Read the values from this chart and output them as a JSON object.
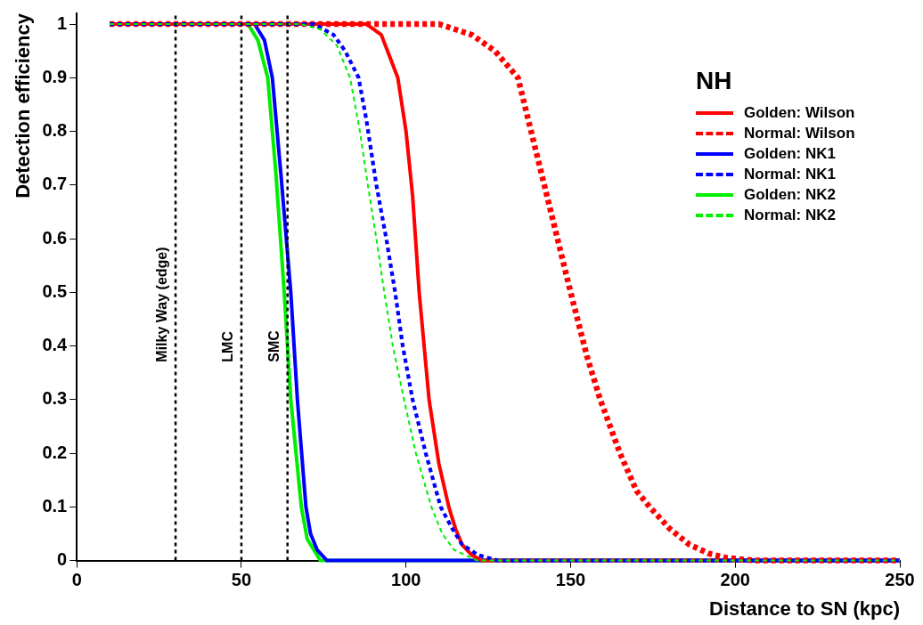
{
  "chart_data": {
    "type": "line",
    "xlabel": "Distance to SN (kpc)",
    "ylabel": "Detection efficiency",
    "legend_title": "NH",
    "legend": "top right",
    "grid": false,
    "marker": "none",
    "xlim": [
      0,
      250
    ],
    "ylim": [
      0,
      1.02
    ],
    "xticks": [
      0,
      50,
      100,
      150,
      200,
      250
    ],
    "yticks": [
      0,
      0.1,
      0.2,
      0.3,
      0.4,
      0.5,
      0.6,
      0.7,
      0.8,
      0.9,
      1
    ],
    "series": [
      {
        "name": "Golden: Wilson",
        "color": "#ff0000",
        "line_style": "solid",
        "x": [
          10,
          88,
          92.5,
          95,
          97.5,
          100,
          102,
          104,
          107,
          110,
          113,
          115,
          117,
          120,
          123,
          250
        ],
        "values": [
          1,
          1,
          0.98,
          0.94,
          0.9,
          0.8,
          0.68,
          0.5,
          0.3,
          0.18,
          0.1,
          0.06,
          0.03,
          0.01,
          0,
          0
        ]
      },
      {
        "name": "Normal: Wilson",
        "color": "#ff0000",
        "line_style": "dashed",
        "x": [
          10,
          110,
          120,
          127,
          134,
          138,
          142,
          146,
          150,
          155,
          159,
          165,
          170,
          174,
          180,
          186,
          192,
          197.5,
          206,
          250
        ],
        "values": [
          1,
          1,
          0.98,
          0.95,
          0.9,
          0.8,
          0.7,
          0.6,
          0.5,
          0.38,
          0.3,
          0.2,
          0.13,
          0.1,
          0.06,
          0.03,
          0.013,
          0.005,
          0,
          0
        ]
      },
      {
        "name": "Golden: NK1",
        "color": "#0000ff",
        "line_style": "solid",
        "x": [
          10,
          54,
          57,
          59.4,
          62,
          65,
          67,
          69.6,
          71,
          73,
          76,
          250
        ],
        "values": [
          1,
          1,
          0.97,
          0.9,
          0.72,
          0.5,
          0.3,
          0.1,
          0.05,
          0.02,
          0,
          0
        ]
      },
      {
        "name": "Normal: NK1",
        "color": "#0000ff",
        "line_style": "dashed",
        "x": [
          10,
          72,
          78,
          81.5,
          85.6,
          88,
          91,
          94,
          96.7,
          99,
          102,
          106,
          110.5,
          114,
          117,
          122,
          128,
          250
        ],
        "values": [
          1,
          1,
          0.98,
          0.95,
          0.9,
          0.82,
          0.7,
          0.6,
          0.5,
          0.4,
          0.3,
          0.2,
          0.1,
          0.06,
          0.03,
          0.01,
          0,
          0
        ]
      },
      {
        "name": "Golden: NK2",
        "color": "#00ee00",
        "line_style": "solid",
        "x": [
          10,
          52,
          55,
          58,
          60.5,
          63,
          65,
          68.2,
          70,
          74,
          250
        ],
        "values": [
          1,
          1,
          0.97,
          0.9,
          0.72,
          0.5,
          0.3,
          0.1,
          0.04,
          0,
          0
        ]
      },
      {
        "name": "Normal: NK2",
        "color": "#00ee00",
        "line_style": "dashed",
        "x": [
          10,
          68,
          74,
          79,
          83,
          86,
          88.4,
          91,
          93.4,
          96,
          99.4,
          103,
          107.7,
          111,
          114.6,
          121.5,
          250
        ],
        "values": [
          1,
          1,
          0.99,
          0.96,
          0.9,
          0.8,
          0.7,
          0.6,
          0.5,
          0.4,
          0.3,
          0.2,
          0.1,
          0.05,
          0.02,
          0,
          0
        ]
      }
    ],
    "ref_lines": [
      {
        "axis": "x",
        "value": 30,
        "label": "Milky Way (edge)",
        "color": "#000000",
        "line_style": "dashed"
      },
      {
        "axis": "x",
        "value": 50,
        "label": "LMC",
        "color": "#000000",
        "line_style": "dashed"
      },
      {
        "axis": "x",
        "value": 64,
        "label": "SMC",
        "color": "#000000",
        "line_style": "dashed"
      }
    ]
  }
}
